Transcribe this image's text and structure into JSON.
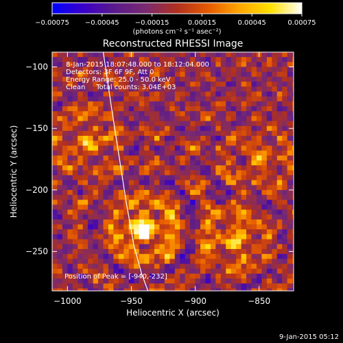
{
  "chart_data": {
    "type": "heatmap",
    "title": "Reconstructed RHESSI Image",
    "xlabel": "Heliocentric X (arcsec)",
    "ylabel": "Heliocentric Y (arcsec)",
    "xlim": [
      -1012,
      -823
    ],
    "ylim": [
      -282,
      -88
    ],
    "x_ticks": [
      -1000,
      -950,
      -900,
      -850
    ],
    "y_ticks": [
      -100,
      -150,
      -200,
      -250
    ],
    "x_tick_labels": [
      "−1000",
      "−950",
      "−900",
      "−850"
    ],
    "y_tick_labels": [
      "−100",
      "−150",
      "−200",
      "−250"
    ],
    "colorbar": {
      "min": -0.00075,
      "max": 0.00075,
      "ticks": [
        -0.00075,
        -0.00045,
        -0.00015,
        0.00015,
        0.00045,
        0.00075
      ],
      "tick_labels": [
        "−0.00075",
        "−0.00045",
        "−0.00015",
        "0.00015",
        "0.00045",
        "0.00075"
      ],
      "unit_label": "(photons cm⁻² s⁻¹ asec⁻²)",
      "colormap": [
        "#0000ff",
        "#3b00c8",
        "#5a1a8c",
        "#7a2a70",
        "#b03020",
        "#e65a00",
        "#ffa600",
        "#ffe000",
        "#ffffff"
      ]
    },
    "annotations": [
      "8-Jan-2015 18:07:48.000 to 18:12:04.000",
      "Detectors: 3F 6F 9F, Att 0",
      "Energy Range: 25.0 - 50.0 keV",
      "Clean     Total counts: 3.04E+03"
    ],
    "peak_label": "Position of Peak = [-940,-232]",
    "peak": [
      -940,
      -232
    ],
    "sources": [
      {
        "x": -940,
        "y": -232,
        "intensity": 0.00075
      },
      {
        "x": -870,
        "y": -240,
        "intensity": 0.0005
      },
      {
        "x": -985,
        "y": -160,
        "intensity": 0.0004
      },
      {
        "x": -850,
        "y": -175,
        "intensity": 0.0003
      }
    ],
    "limb_curve": [
      [
        -972,
        -88
      ],
      [
        -966,
        -130
      ],
      [
        -960,
        -170
      ],
      [
        -954,
        -210
      ],
      [
        -948,
        -245
      ],
      [
        -942,
        -268
      ],
      [
        -937,
        -282
      ]
    ],
    "grid": false
  },
  "footer_timestamp": "9-Jan-2015 05:12"
}
